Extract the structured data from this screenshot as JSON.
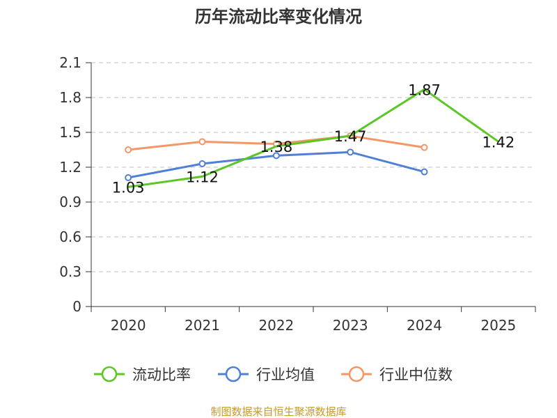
{
  "chart_data": {
    "type": "line",
    "title": "历年流动比率变化情况",
    "categories": [
      "2020",
      "2021",
      "2022",
      "2023",
      "2024",
      "2025"
    ],
    "ylim": [
      0,
      2.1
    ],
    "yticks": [
      "0",
      "0.3",
      "0.6",
      "0.9",
      "1.2",
      "1.5",
      "1.8",
      "2.1"
    ],
    "grid": true,
    "legend_position": "bottom",
    "series": [
      {
        "name": "流动比率",
        "color": "#5cc624",
        "values": [
          1.03,
          1.12,
          1.38,
          1.47,
          1.87,
          1.42
        ],
        "labels": [
          "1.03",
          "1.12",
          "1.38",
          "1.47",
          "1.87",
          "1.42"
        ]
      },
      {
        "name": "行业均值",
        "color": "#4f7fd6",
        "values": [
          1.11,
          1.23,
          1.3,
          1.33,
          1.16,
          null
        ]
      },
      {
        "name": "行业中位数",
        "color": "#f59666",
        "values": [
          1.35,
          1.42,
          1.4,
          1.47,
          1.37,
          null
        ]
      }
    ]
  },
  "source": "制图数据来自恒生聚源数据库"
}
